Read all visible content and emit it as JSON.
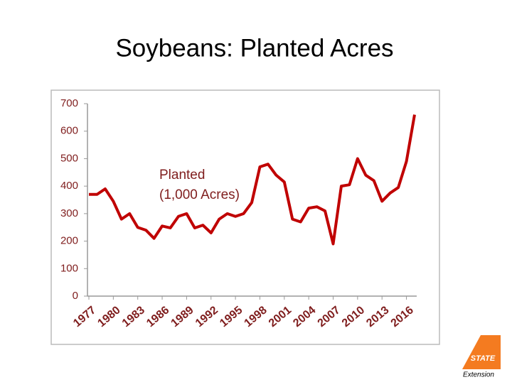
{
  "chart_data": {
    "type": "line",
    "title": "Soybeans: Planted Acres",
    "annotations": [
      "Planted",
      "(1,000 Acres)"
    ],
    "x": [
      1977,
      1978,
      1979,
      1980,
      1981,
      1982,
      1983,
      1984,
      1985,
      1986,
      1987,
      1988,
      1989,
      1990,
      1991,
      1992,
      1993,
      1994,
      1995,
      1996,
      1997,
      1998,
      1999,
      2000,
      2001,
      2002,
      2003,
      2004,
      2005,
      2006,
      2007,
      2008,
      2009,
      2010,
      2011,
      2012,
      2013,
      2014,
      2015,
      2016,
      2017
    ],
    "series": [
      {
        "name": "Planted",
        "color": "#c00000",
        "values": [
          370,
          370,
          390,
          345,
          280,
          300,
          250,
          240,
          210,
          255,
          248,
          290,
          300,
          248,
          258,
          230,
          280,
          300,
          290,
          300,
          340,
          470,
          480,
          440,
          415,
          280,
          270,
          320,
          325,
          310,
          190,
          400,
          405,
          500,
          440,
          420,
          345,
          375,
          395,
          490,
          660
        ]
      }
    ],
    "xlim": [
      1977,
      2017
    ],
    "xticks": [
      1977,
      1980,
      1983,
      1986,
      1989,
      1992,
      1995,
      1998,
      2001,
      2004,
      2007,
      2010,
      2013,
      2016
    ],
    "ylim": [
      0,
      700
    ],
    "yticks": [
      0,
      100,
      200,
      300,
      400,
      500,
      600,
      700
    ],
    "grid": false,
    "logo": {
      "top": "STATE",
      "bottom": "Extension"
    }
  }
}
